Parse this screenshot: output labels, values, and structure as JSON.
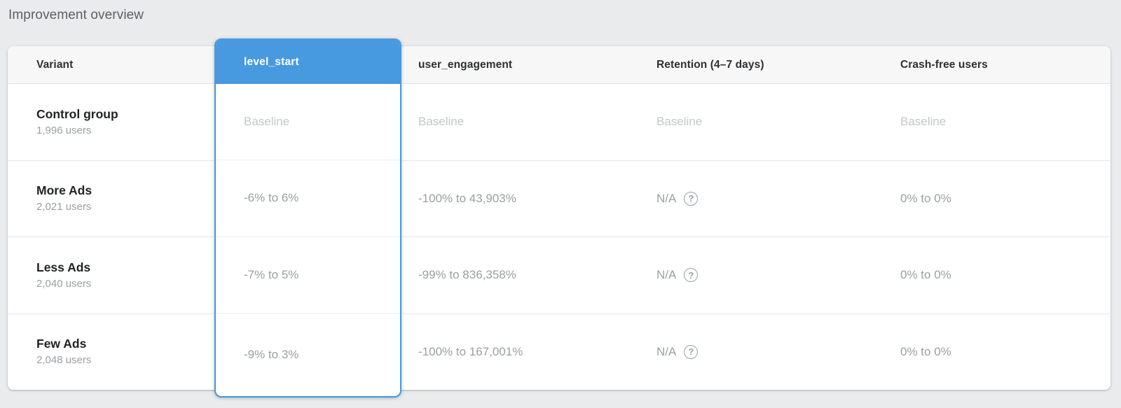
{
  "page": {
    "title": "Improvement overview"
  },
  "colors": {
    "accent": "#4799e0",
    "page_background": "#e9ebec",
    "header_background": "#f7f7f7",
    "baseline_text": "#c3c6ca",
    "value_text": "#9a9ea3"
  },
  "table": {
    "columns": {
      "variant": "Variant",
      "level_start": "level_start",
      "user_engagement": "user_engagement",
      "retention": "Retention (4–7 days)",
      "crash_free": "Crash-free users"
    },
    "selected_column": "level_start",
    "help_icon": "?",
    "rows": [
      {
        "variant": "Control group",
        "users": "1,996 users",
        "level_start": "Baseline",
        "user_engagement": "Baseline",
        "retention": "Baseline",
        "crash_free": "Baseline"
      },
      {
        "variant": "More Ads",
        "users": "2,021 users",
        "level_start": "-6% to 6%",
        "user_engagement": "-100% to 43,903%",
        "retention": "N/A",
        "crash_free": "0% to 0%"
      },
      {
        "variant": "Less Ads",
        "users": "2,040 users",
        "level_start": "-7% to 5%",
        "user_engagement": "-99% to 836,358%",
        "retention": "N/A",
        "crash_free": "0% to 0%"
      },
      {
        "variant": "Few Ads",
        "users": "2,048 users",
        "level_start": "-9% to 3%",
        "user_engagement": "-100% to 167,001%",
        "retention": "N/A",
        "crash_free": "0% to 0%"
      }
    ]
  }
}
